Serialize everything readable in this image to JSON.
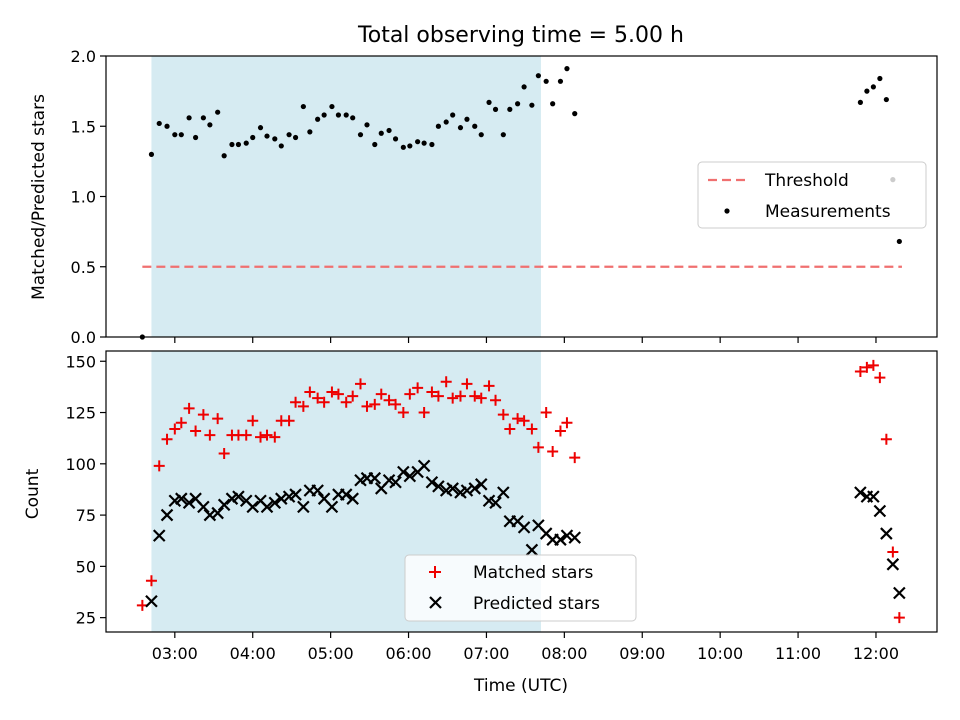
{
  "chart_data": [
    {
      "type": "scatter",
      "title": "Total observing time = 5.00 h",
      "ylabel": "Matched/Predicted stars",
      "ylim": [
        0,
        2.0
      ],
      "yticks": [
        "0.0",
        "0.5",
        "1.0",
        "1.5",
        "2.0"
      ],
      "shaded_span": [
        "02:42",
        "07:42"
      ],
      "legend": {
        "placement": "right",
        "entries": [
          "Threshold",
          "Measurements"
        ]
      },
      "series": [
        {
          "name": "Threshold",
          "style": "dashed-line",
          "color": "#f07070",
          "x": [
            "02:35",
            "12:20"
          ],
          "y": [
            0.5,
            0.5
          ]
        },
        {
          "name": "Measurements",
          "style": "dot",
          "color": "#000000",
          "points": [
            [
              "02:35",
              0.0
            ],
            [
              "02:42",
              1.3
            ],
            [
              "02:48",
              1.52
            ],
            [
              "02:54",
              1.5
            ],
            [
              "03:00",
              1.44
            ],
            [
              "03:05",
              1.44
            ],
            [
              "03:11",
              1.56
            ],
            [
              "03:16",
              1.42
            ],
            [
              "03:22",
              1.56
            ],
            [
              "03:27",
              1.51
            ],
            [
              "03:33",
              1.6
            ],
            [
              "03:38",
              1.29
            ],
            [
              "03:44",
              1.37
            ],
            [
              "03:49",
              1.37
            ],
            [
              "03:55",
              1.38
            ],
            [
              "04:00",
              1.42
            ],
            [
              "04:06",
              1.49
            ],
            [
              "04:11",
              1.43
            ],
            [
              "04:17",
              1.41
            ],
            [
              "04:22",
              1.36
            ],
            [
              "04:28",
              1.44
            ],
            [
              "04:33",
              1.42
            ],
            [
              "04:39",
              1.64
            ],
            [
              "04:44",
              1.46
            ],
            [
              "04:50",
              1.55
            ],
            [
              "04:55",
              1.58
            ],
            [
              "05:01",
              1.64
            ],
            [
              "05:06",
              1.58
            ],
            [
              "05:12",
              1.58
            ],
            [
              "05:17",
              1.56
            ],
            [
              "05:23",
              1.44
            ],
            [
              "05:28",
              1.51
            ],
            [
              "05:34",
              1.37
            ],
            [
              "05:39",
              1.45
            ],
            [
              "05:45",
              1.47
            ],
            [
              "05:50",
              1.41
            ],
            [
              "05:56",
              1.35
            ],
            [
              "06:01",
              1.36
            ],
            [
              "06:07",
              1.39
            ],
            [
              "06:12",
              1.38
            ],
            [
              "06:18",
              1.37
            ],
            [
              "06:23",
              1.5
            ],
            [
              "06:29",
              1.53
            ],
            [
              "06:34",
              1.58
            ],
            [
              "06:40",
              1.49
            ],
            [
              "06:45",
              1.55
            ],
            [
              "06:51",
              1.5
            ],
            [
              "06:56",
              1.44
            ],
            [
              "07:02",
              1.67
            ],
            [
              "07:07",
              1.62
            ],
            [
              "07:13",
              1.44
            ],
            [
              "07:18",
              1.62
            ],
            [
              "07:24",
              1.66
            ],
            [
              "07:29",
              1.78
            ],
            [
              "07:35",
              1.65
            ],
            [
              "07:40",
              1.86
            ],
            [
              "07:46",
              1.82
            ],
            [
              "07:51",
              1.66
            ],
            [
              "07:57",
              1.82
            ],
            [
              "08:02",
              1.91
            ],
            [
              "08:08",
              1.59
            ],
            [
              "11:48",
              1.67
            ],
            [
              "11:53",
              1.75
            ],
            [
              "11:58",
              1.78
            ],
            [
              "12:03",
              1.84
            ],
            [
              "12:08",
              1.69
            ],
            [
              "12:13",
              1.12
            ],
            [
              "12:18",
              0.68
            ]
          ]
        }
      ]
    },
    {
      "type": "scatter",
      "xlabel": "Time (UTC)",
      "ylabel": "Count",
      "ylim": [
        18,
        155
      ],
      "yticks": [
        "25",
        "50",
        "75",
        "100",
        "125",
        "150"
      ],
      "xticks": [
        "03:00",
        "04:00",
        "05:00",
        "06:00",
        "07:00",
        "08:00",
        "09:00",
        "10:00",
        "11:00",
        "12:00"
      ],
      "shaded_span": [
        "02:42",
        "07:42"
      ],
      "legend": {
        "placement": "bottom-center",
        "entries": [
          "Matched stars",
          "Predicted stars"
        ]
      },
      "series": [
        {
          "name": "Matched stars",
          "marker": "plus",
          "color": "#ee0000",
          "points": [
            [
              "02:35",
              31
            ],
            [
              "02:42",
              43
            ],
            [
              "02:48",
              99
            ],
            [
              "02:54",
              112
            ],
            [
              "03:00",
              117
            ],
            [
              "03:05",
              120
            ],
            [
              "03:11",
              127
            ],
            [
              "03:16",
              116
            ],
            [
              "03:22",
              124
            ],
            [
              "03:27",
              114
            ],
            [
              "03:33",
              122
            ],
            [
              "03:38",
              105
            ],
            [
              "03:44",
              114
            ],
            [
              "03:49",
              114
            ],
            [
              "03:55",
              114
            ],
            [
              "04:00",
              121
            ],
            [
              "04:06",
              113
            ],
            [
              "04:11",
              114
            ],
            [
              "04:17",
              113
            ],
            [
              "04:22",
              121
            ],
            [
              "04:28",
              121
            ],
            [
              "04:33",
              130
            ],
            [
              "04:39",
              128
            ],
            [
              "04:44",
              135
            ],
            [
              "04:50",
              132
            ],
            [
              "04:55",
              130
            ],
            [
              "05:01",
              135
            ],
            [
              "05:06",
              134
            ],
            [
              "05:12",
              130
            ],
            [
              "05:17",
              133
            ],
            [
              "05:23",
              139
            ],
            [
              "05:28",
              128
            ],
            [
              "05:34",
              129
            ],
            [
              "05:39",
              134
            ],
            [
              "05:45",
              131
            ],
            [
              "05:50",
              129
            ],
            [
              "05:56",
              125
            ],
            [
              "06:01",
              134
            ],
            [
              "06:07",
              137
            ],
            [
              "06:12",
              125
            ],
            [
              "06:18",
              135
            ],
            [
              "06:23",
              133
            ],
            [
              "06:29",
              140
            ],
            [
              "06:34",
              132
            ],
            [
              "06:40",
              133
            ],
            [
              "06:45",
              139
            ],
            [
              "06:51",
              133
            ],
            [
              "06:56",
              132
            ],
            [
              "07:02",
              138
            ],
            [
              "07:07",
              131
            ],
            [
              "07:13",
              124
            ],
            [
              "07:18",
              117
            ],
            [
              "07:24",
              122
            ],
            [
              "07:29",
              121
            ],
            [
              "07:35",
              117
            ],
            [
              "07:40",
              108
            ],
            [
              "07:46",
              125
            ],
            [
              "07:51",
              106
            ],
            [
              "07:57",
              116
            ],
            [
              "08:02",
              120
            ],
            [
              "08:08",
              103
            ],
            [
              "11:48",
              145
            ],
            [
              "11:53",
              147
            ],
            [
              "11:58",
              148
            ],
            [
              "12:03",
              142
            ],
            [
              "12:08",
              112
            ],
            [
              "12:13",
              57
            ],
            [
              "12:18",
              25
            ]
          ]
        },
        {
          "name": "Predicted stars",
          "marker": "x",
          "color": "#000000",
          "points": [
            [
              "02:42",
              33
            ],
            [
              "02:48",
              65
            ],
            [
              "02:54",
              75
            ],
            [
              "03:00",
              82
            ],
            [
              "03:05",
              83
            ],
            [
              "03:11",
              81
            ],
            [
              "03:16",
              83
            ],
            [
              "03:22",
              79
            ],
            [
              "03:27",
              75
            ],
            [
              "03:33",
              76
            ],
            [
              "03:38",
              80
            ],
            [
              "03:44",
              83
            ],
            [
              "03:49",
              84
            ],
            [
              "03:55",
              82
            ],
            [
              "04:00",
              79
            ],
            [
              "04:06",
              82
            ],
            [
              "04:11",
              79
            ],
            [
              "04:17",
              81
            ],
            [
              "04:22",
              83
            ],
            [
              "04:28",
              84
            ],
            [
              "04:33",
              85
            ],
            [
              "04:39",
              79
            ],
            [
              "04:44",
              87
            ],
            [
              "04:50",
              87
            ],
            [
              "04:55",
              83
            ],
            [
              "05:01",
              79
            ],
            [
              "05:06",
              85
            ],
            [
              "05:12",
              85
            ],
            [
              "05:17",
              83
            ],
            [
              "05:23",
              92
            ],
            [
              "05:28",
              93
            ],
            [
              "05:34",
              93
            ],
            [
              "05:39",
              88
            ],
            [
              "05:45",
              92
            ],
            [
              "05:50",
              91
            ],
            [
              "05:56",
              96
            ],
            [
              "06:01",
              94
            ],
            [
              "06:07",
              96
            ],
            [
              "06:12",
              99
            ],
            [
              "06:18",
              91
            ],
            [
              "06:23",
              89
            ],
            [
              "06:29",
              87
            ],
            [
              "06:34",
              88
            ],
            [
              "06:40",
              86
            ],
            [
              "06:45",
              87
            ],
            [
              "06:51",
              88
            ],
            [
              "06:56",
              90
            ],
            [
              "07:02",
              82
            ],
            [
              "07:07",
              81
            ],
            [
              "07:13",
              86
            ],
            [
              "07:18",
              72
            ],
            [
              "07:24",
              72
            ],
            [
              "07:29",
              69
            ],
            [
              "07:35",
              58
            ],
            [
              "07:40",
              70
            ],
            [
              "07:46",
              66
            ],
            [
              "07:51",
              63
            ],
            [
              "07:57",
              63
            ],
            [
              "08:02",
              65
            ],
            [
              "08:08",
              64
            ],
            [
              "11:48",
              86
            ],
            [
              "11:53",
              84
            ],
            [
              "11:58",
              84
            ],
            [
              "12:03",
              77
            ],
            [
              "12:08",
              66
            ],
            [
              "12:13",
              51
            ],
            [
              "12:18",
              37
            ]
          ]
        }
      ]
    }
  ]
}
